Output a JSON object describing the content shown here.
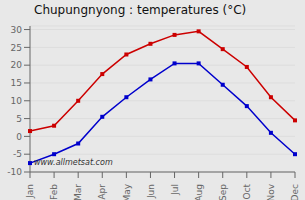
{
  "chart_data": {
    "type": "line",
    "title": "Chupungnyong : temperatures (°C)",
    "annotation": "www.allmetsat.com",
    "categories": [
      "Jan",
      "Feb",
      "Mar",
      "Apr",
      "May",
      "Jun",
      "Jul",
      "Aug",
      "Sep",
      "Oct",
      "Nov",
      "Dec"
    ],
    "series": [
      {
        "color": "#cc0000",
        "marker": "square",
        "line_style": "solid",
        "values": [
          1.5,
          3.0,
          10.0,
          17.5,
          23.0,
          26.0,
          28.5,
          29.5,
          24.5,
          19.5,
          11.0,
          4.5
        ]
      },
      {
        "color": "#0000cc",
        "marker": "square",
        "line_style": "solid",
        "values": [
          -7.5,
          -5.0,
          -2.0,
          5.5,
          11.0,
          16.0,
          20.5,
          20.5,
          14.5,
          8.5,
          1.0,
          -5.0
        ]
      }
    ],
    "ylim": [
      -10,
      31
    ],
    "yticks": [
      -10,
      -5,
      0,
      5,
      10,
      15,
      20,
      25,
      30
    ],
    "grid": true
  }
}
